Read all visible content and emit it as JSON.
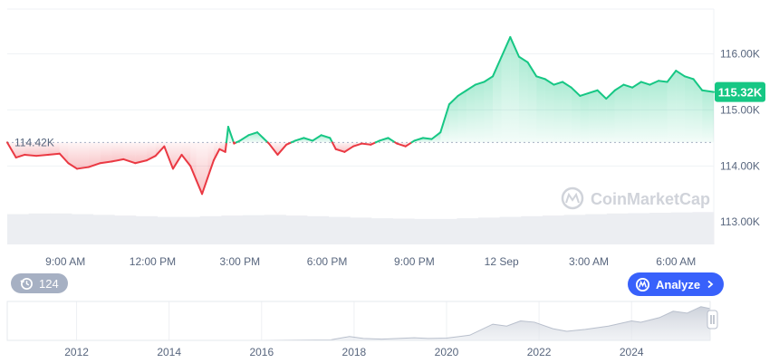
{
  "colors": {
    "up": "#16c784",
    "down": "#ea3943",
    "accent": "#3861fb",
    "badge_bg": "#a6b0c3",
    "grid": "#eff2f5",
    "text": "#58667e"
  },
  "watermark": {
    "text": "CoinMarketCap",
    "icon": "coinmarketcap-logo-icon"
  },
  "history_badge": {
    "icon": "history-clock-icon",
    "count": "124"
  },
  "analyze_button": {
    "label": "Analyze",
    "icon": "coinmarketcap-logo-icon",
    "chevron": "chevron-right-icon"
  },
  "chart_data": [
    {
      "type": "line",
      "reference_value": 114.42,
      "reference_label": "114.42K",
      "current_value": 115.32,
      "current_label": "115.32K",
      "y_unit": "K",
      "ylim": [
        112.6,
        116.8
      ],
      "y_ticks": [
        {
          "value": 116.0,
          "label": "116.00K"
        },
        {
          "value": 115.0,
          "label": "115.00K"
        },
        {
          "value": 114.0,
          "label": "114.00K"
        },
        {
          "value": 113.0,
          "label": "113.00K"
        }
      ],
      "xlim": [
        7.0,
        31.3
      ],
      "x_ticks": [
        {
          "value": 9,
          "label": "9:00 AM"
        },
        {
          "value": 12,
          "label": "12:00 PM"
        },
        {
          "value": 15,
          "label": "3:00 PM"
        },
        {
          "value": 18,
          "label": "6:00 PM"
        },
        {
          "value": 21,
          "label": "9:00 PM"
        },
        {
          "value": 24,
          "label": "12 Sep"
        },
        {
          "value": 27,
          "label": "3:00 AM"
        },
        {
          "value": 30,
          "label": "6:00 AM"
        }
      ],
      "x": [
        7.0,
        7.3,
        7.6,
        8.0,
        8.4,
        8.8,
        9.1,
        9.4,
        9.8,
        10.2,
        10.6,
        11.0,
        11.4,
        11.8,
        12.1,
        12.4,
        12.7,
        13.0,
        13.3,
        13.5,
        13.7,
        13.9,
        14.1,
        14.3,
        14.5,
        14.6,
        14.8,
        15.0,
        15.3,
        15.6,
        15.8,
        16.0,
        16.3,
        16.6,
        16.9,
        17.2,
        17.5,
        17.8,
        18.1,
        18.3,
        18.6,
        18.9,
        19.2,
        19.5,
        19.8,
        20.1,
        20.4,
        20.7,
        21.0,
        21.3,
        21.6,
        21.9,
        22.2,
        22.5,
        22.8,
        23.1,
        23.4,
        23.7,
        24.0,
        24.3,
        24.6,
        24.9,
        25.2,
        25.5,
        25.8,
        26.1,
        26.4,
        26.7,
        27.0,
        27.3,
        27.6,
        27.9,
        28.2,
        28.5,
        28.8,
        29.1,
        29.4,
        29.7,
        30.0,
        30.3,
        30.6,
        30.9,
        31.3
      ],
      "y": [
        114.42,
        114.15,
        114.2,
        114.18,
        114.2,
        114.22,
        114.05,
        113.95,
        113.98,
        114.05,
        114.08,
        114.12,
        114.05,
        114.1,
        114.18,
        114.35,
        113.95,
        114.2,
        114.0,
        113.75,
        113.5,
        113.8,
        114.1,
        114.3,
        114.25,
        114.7,
        114.4,
        114.45,
        114.55,
        114.6,
        114.5,
        114.4,
        114.2,
        114.38,
        114.45,
        114.5,
        114.45,
        114.55,
        114.5,
        114.3,
        114.25,
        114.35,
        114.4,
        114.38,
        114.45,
        114.5,
        114.4,
        114.35,
        114.45,
        114.5,
        114.48,
        114.6,
        115.1,
        115.25,
        115.35,
        115.45,
        115.5,
        115.6,
        115.95,
        116.3,
        115.95,
        115.85,
        115.6,
        115.55,
        115.45,
        115.5,
        115.4,
        115.25,
        115.3,
        115.35,
        115.2,
        115.35,
        115.45,
        115.4,
        115.5,
        115.45,
        115.52,
        115.5,
        115.7,
        115.6,
        115.55,
        115.35,
        115.32
      ],
      "volume_bars": [
        0.88,
        0.9,
        0.9,
        0.88,
        0.86,
        0.84,
        0.82,
        0.8,
        0.8,
        0.82,
        0.84,
        0.85,
        0.86,
        0.84,
        0.82,
        0.8,
        0.78,
        0.76,
        0.75,
        0.74,
        0.74,
        0.76,
        0.78,
        0.8,
        0.82,
        0.84,
        0.86,
        0.88,
        0.9,
        0.91,
        0.92,
        0.93,
        0.94
      ]
    },
    {
      "type": "area",
      "x_ticks": [
        {
          "value": 2012,
          "label": "2012"
        },
        {
          "value": 2014,
          "label": "2014"
        },
        {
          "value": 2016,
          "label": "2016"
        },
        {
          "value": 2018,
          "label": "2018"
        },
        {
          "value": 2020,
          "label": "2020"
        },
        {
          "value": 2022,
          "label": "2022"
        },
        {
          "value": 2024,
          "label": "2024"
        }
      ],
      "xlim": [
        2010.5,
        2025.7
      ],
      "x": [
        2010.5,
        2012,
        2013,
        2014,
        2016,
        2017.5,
        2017.9,
        2018.2,
        2018.6,
        2019.3,
        2019.6,
        2020.0,
        2020.5,
        2021.0,
        2021.3,
        2021.6,
        2021.9,
        2022.3,
        2022.6,
        2023.0,
        2023.5,
        2024.0,
        2024.2,
        2024.6,
        2024.9,
        2025.2,
        2025.5,
        2025.7
      ],
      "y": [
        0,
        0,
        0,
        0,
        0,
        0.8,
        6,
        3,
        2,
        4,
        3,
        3.5,
        8,
        25,
        22,
        30,
        28,
        18,
        14,
        17,
        22,
        30,
        28,
        35,
        45,
        42,
        52,
        49
      ],
      "ylim": [
        0,
        60
      ]
    }
  ]
}
